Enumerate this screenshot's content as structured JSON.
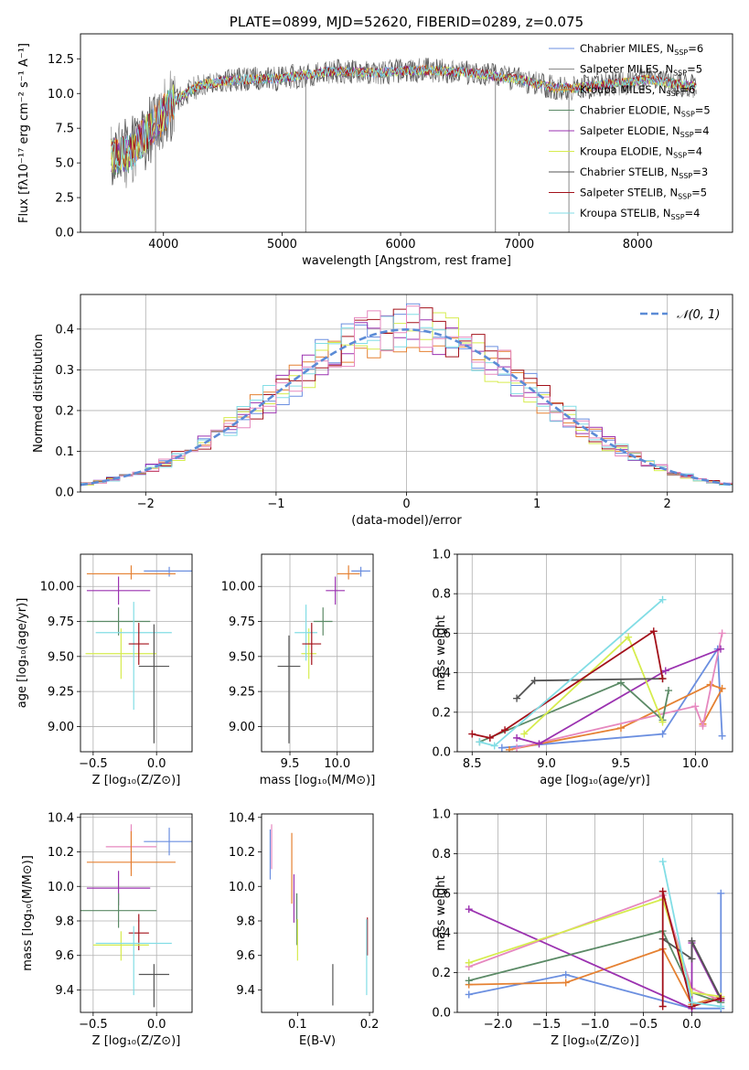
{
  "colors": {
    "chabrier_miles": "#6b8fe0",
    "salpeter_miles": "#8a8a8a",
    "kroupa_miles": "#e58132",
    "chabrier_elodie": "#5b8a66",
    "salpeter_elodie": "#9b32b0",
    "kroupa_elodie": "#d6ec4e",
    "chabrier_stelib": "#555555",
    "salpeter_stelib": "#a3101a",
    "kroupa_stelib": "#82dde5",
    "pink": "#e688bf",
    "normal_curve": "#5b8bd6",
    "grid": "#b0b0b0"
  },
  "chart_data": [
    {
      "id": "spectrum",
      "type": "line",
      "title": "PLATE=0899, MJD=52620, FIBERID=0289, z=0.075",
      "xlabel": "wavelength [Angstrom, rest frame]",
      "ylabel": "Flux [fλ10⁻¹⁷ erg cm⁻² s⁻¹ A⁻¹]",
      "xlim": [
        3300,
        8800
      ],
      "ylim": [
        0,
        14.3
      ],
      "xticks": [
        4000,
        5000,
        6000,
        7000,
        8000
      ],
      "yticks": [
        0.0,
        2.5,
        5.0,
        7.5,
        10.0,
        12.5
      ],
      "grid": false,
      "legend_position": "top-right",
      "legend": [
        {
          "label": "Chabrier MILES, N",
          "sub": "SSP",
          "val": "=6",
          "color": "chabrier_miles"
        },
        {
          "label": "Salpeter MILES, N",
          "sub": "SSP",
          "val": "=5",
          "color": "salpeter_miles"
        },
        {
          "label": "Kroupa MILES, N",
          "sub": "SSP",
          "val": "=6",
          "color": "kroupa_miles"
        },
        {
          "label": "Chabrier ELODIE, N",
          "sub": "SSP",
          "val": "=5",
          "color": "chabrier_elodie"
        },
        {
          "label": "Salpeter ELODIE, N",
          "sub": "SSP",
          "val": "=4",
          "color": "salpeter_elodie"
        },
        {
          "label": "Kroupa ELODIE, N",
          "sub": "SSP",
          "val": "=4",
          "color": "kroupa_elodie"
        },
        {
          "label": "Chabrier STELIB, N",
          "sub": "SSP",
          "val": "=3",
          "color": "chabrier_stelib"
        },
        {
          "label": "Salpeter STELIB, N",
          "sub": "SSP",
          "val": "=5",
          "color": "salpeter_stelib"
        },
        {
          "label": "Kroupa STELIB, N",
          "sub": "SSP",
          "val": "=4",
          "color": "kroupa_stelib"
        }
      ],
      "envelope": {
        "x": [
          3560,
          3700,
          3900,
          4100,
          4300,
          4600,
          5000,
          5400,
          5800,
          6200,
          6600,
          7000,
          7300,
          7500,
          7800,
          8100,
          8400,
          8500
        ],
        "y": [
          5.5,
          5.6,
          7.5,
          9.5,
          10.6,
          11.0,
          11.1,
          11.6,
          11.5,
          11.7,
          11.5,
          11.0,
          10.4,
          10.4,
          10.7,
          11.0,
          10.6,
          10.5
        ]
      },
      "spikes": [
        {
          "x": 3933,
          "y": 0.0
        },
        {
          "x": 5200,
          "y": 0.0
        },
        {
          "x": 6800,
          "y": 0.0
        },
        {
          "x": 7420,
          "y": 0.0
        }
      ]
    },
    {
      "id": "residuals",
      "type": "histogram",
      "xlabel": "(data-model)/error",
      "ylabel": "Normed distribution",
      "xlim": [
        -2.5,
        2.5
      ],
      "ylim": [
        0,
        0.485
      ],
      "xticks": [
        -2,
        -1,
        0,
        1,
        2
      ],
      "yticks": [
        0.0,
        0.1,
        0.2,
        0.3,
        0.4
      ],
      "grid": true,
      "bin_width": 0.1,
      "legend_position": "top-right",
      "legend": [
        {
          "label": "𝒩(0, 1)",
          "color": "normal_curve"
        }
      ],
      "series": [
        {
          "color": "chabrier_miles",
          "seed": 1
        },
        {
          "color": "kroupa_miles",
          "seed": 2
        },
        {
          "color": "salpeter_elodie",
          "seed": 3
        },
        {
          "color": "kroupa_elodie",
          "seed": 4
        },
        {
          "color": "salpeter_stelib",
          "seed": 5
        },
        {
          "color": "kroupa_stelib",
          "seed": 6
        },
        {
          "color": "pink",
          "seed": 7
        }
      ]
    },
    {
      "id": "age_vs_Z",
      "type": "errorbar",
      "xlabel": "Z [log₁₀(Z/Z⊙)]",
      "ylabel": "age  [log₁₀(age/yr)]",
      "xlim": [
        -0.6,
        0.28
      ],
      "ylim": [
        8.82,
        10.23
      ],
      "xticks": [
        -0.5,
        0.0
      ],
      "yticks": [
        9.0,
        9.25,
        9.5,
        9.75,
        10.0
      ],
      "grid": true,
      "points": [
        {
          "color": "chabrier_miles",
          "x": 0.1,
          "xerr": [
            0.2,
            0.2
          ],
          "y": 10.11,
          "yerr": [
            0.04,
            0.03
          ]
        },
        {
          "color": "kroupa_miles",
          "x": -0.2,
          "xerr": [
            0.35,
            0.35
          ],
          "y": 10.09,
          "yerr": [
            0.04,
            0.06
          ]
        },
        {
          "color": "salpeter_elodie",
          "x": -0.3,
          "xerr": [
            0.25,
            0.25
          ],
          "y": 9.97,
          "yerr": [
            0.1,
            0.1
          ]
        },
        {
          "color": "chabrier_elodie",
          "x": -0.3,
          "xerr": [
            0.25,
            0.25
          ],
          "y": 9.75,
          "yerr": [
            0.1,
            0.1
          ]
        },
        {
          "color": "kroupa_elodie",
          "x": -0.28,
          "xerr": [
            0.28,
            0.28
          ],
          "y": 9.52,
          "yerr": [
            0.18,
            0.18
          ]
        },
        {
          "color": "kroupa_stelib",
          "x": -0.18,
          "xerr": [
            0.3,
            0.3
          ],
          "y": 9.67,
          "yerr": [
            0.55,
            0.22
          ]
        },
        {
          "color": "salpeter_stelib",
          "x": -0.14,
          "xerr": [
            0.08,
            0.08
          ],
          "y": 9.59,
          "yerr": [
            0.15,
            0.15
          ]
        },
        {
          "color": "chabrier_stelib",
          "x": -0.02,
          "xerr": [
            0.12,
            0.12
          ],
          "y": 9.43,
          "yerr": [
            0.55,
            0.3
          ]
        }
      ]
    },
    {
      "id": "age_vs_mass",
      "type": "errorbar",
      "xlabel": "mass [log₁₀(M/M⊙)]",
      "ylabel": "",
      "xlim": [
        9.2,
        10.38
      ],
      "ylim": [
        8.82,
        10.23
      ],
      "xticks": [
        9.5,
        10.0
      ],
      "yticks": [
        9.0,
        9.25,
        9.5,
        9.75,
        10.0
      ],
      "grid": true,
      "points": [
        {
          "color": "chabrier_miles",
          "x": 10.25,
          "xerr": [
            0.1,
            0.1
          ],
          "y": 10.11,
          "yerr": [
            0.04,
            0.03
          ]
        },
        {
          "color": "kroupa_miles",
          "x": 10.12,
          "xerr": [
            0.12,
            0.12
          ],
          "y": 10.09,
          "yerr": [
            0.04,
            0.06
          ]
        },
        {
          "color": "salpeter_elodie",
          "x": 9.98,
          "xerr": [
            0.1,
            0.1
          ],
          "y": 9.97,
          "yerr": [
            0.1,
            0.1
          ]
        },
        {
          "color": "chabrier_elodie",
          "x": 9.85,
          "xerr": [
            0.1,
            0.1
          ],
          "y": 9.75,
          "yerr": [
            0.1,
            0.1
          ]
        },
        {
          "color": "kroupa_elodie",
          "x": 9.7,
          "xerr": [
            0.08,
            0.08
          ],
          "y": 9.52,
          "yerr": [
            0.18,
            0.18
          ]
        },
        {
          "color": "kroupa_stelib",
          "x": 9.67,
          "xerr": [
            0.12,
            0.12
          ],
          "y": 9.67,
          "yerr": [
            0.2,
            0.2
          ]
        },
        {
          "color": "salpeter_stelib",
          "x": 9.73,
          "xerr": [
            0.1,
            0.1
          ],
          "y": 9.59,
          "yerr": [
            0.15,
            0.15
          ]
        },
        {
          "color": "chabrier_stelib",
          "x": 9.49,
          "xerr": [
            0.12,
            0.12
          ],
          "y": 9.43,
          "yerr": [
            0.55,
            0.22
          ]
        }
      ]
    },
    {
      "id": "weight_vs_age",
      "type": "line",
      "xlabel": "age  [log₁₀(age/yr)]",
      "ylabel": "mass weight",
      "xlim": [
        8.4,
        10.25
      ],
      "ylim": [
        0.0,
        1.0
      ],
      "xticks": [
        8.5,
        9.0,
        9.5,
        10.0
      ],
      "yticks": [
        0.0,
        0.2,
        0.4,
        0.6,
        0.8,
        1.0
      ],
      "grid": true,
      "series": [
        {
          "color": "chabrier_miles",
          "x": [
            8.7,
            9.78,
            10.15,
            10.18
          ],
          "y": [
            0.02,
            0.09,
            0.52,
            0.08
          ]
        },
        {
          "color": "kroupa_miles",
          "x": [
            8.75,
            9.5,
            10.1,
            10.18,
            10.05
          ],
          "y": [
            0.01,
            0.12,
            0.34,
            0.32,
            0.14
          ]
        },
        {
          "color": "pink",
          "x": [
            8.8,
            10.0,
            10.05,
            10.18
          ],
          "y": [
            0.02,
            0.23,
            0.13,
            0.6
          ]
        },
        {
          "color": "salpeter_elodie",
          "x": [
            8.8,
            8.95,
            9.8,
            10.17
          ],
          "y": [
            0.07,
            0.04,
            0.41,
            0.52
          ]
        },
        {
          "color": "chabrier_elodie",
          "x": [
            8.55,
            9.5,
            9.78,
            9.82
          ],
          "y": [
            0.05,
            0.35,
            0.16,
            0.31
          ]
        },
        {
          "color": "kroupa_elodie",
          "x": [
            8.85,
            9.55,
            9.78
          ],
          "y": [
            0.09,
            0.58,
            0.15
          ]
        },
        {
          "color": "chabrier_stelib",
          "x": [
            8.8,
            8.92,
            9.78
          ],
          "y": [
            0.27,
            0.36,
            0.37
          ]
        },
        {
          "color": "salpeter_stelib",
          "x": [
            8.5,
            8.62,
            8.72,
            9.72,
            9.78
          ],
          "y": [
            0.09,
            0.07,
            0.11,
            0.61,
            0.37
          ]
        },
        {
          "color": "kroupa_stelib",
          "x": [
            8.55,
            8.65,
            9.78
          ],
          "y": [
            0.05,
            0.03,
            0.77
          ]
        }
      ]
    },
    {
      "id": "mass_vs_Z",
      "type": "errorbar",
      "xlabel": "Z [log₁₀(Z/Z⊙)]",
      "ylabel": "mass [log₁₀(M/M⊙)]",
      "xlim": [
        -0.6,
        0.28
      ],
      "ylim": [
        9.27,
        10.42
      ],
      "xticks": [
        -0.5,
        0.0
      ],
      "yticks": [
        9.4,
        9.6,
        9.8,
        10.0,
        10.2,
        10.4
      ],
      "grid": true,
      "points": [
        {
          "color": "chabrier_miles",
          "x": 0.1,
          "xerr": [
            0.2,
            0.2
          ],
          "y": 10.26,
          "yerr": [
            0.08,
            0.08
          ]
        },
        {
          "color": "pink",
          "x": -0.2,
          "xerr": [
            0.2,
            0.2
          ],
          "y": 10.23,
          "yerr": [
            0.13,
            0.13
          ]
        },
        {
          "color": "kroupa_miles",
          "x": -0.2,
          "xerr": [
            0.35,
            0.35
          ],
          "y": 10.14,
          "yerr": [
            0.08,
            0.18
          ]
        },
        {
          "color": "salpeter_elodie",
          "x": -0.3,
          "xerr": [
            0.25,
            0.25
          ],
          "y": 9.99,
          "yerr": [
            0.1,
            0.1
          ]
        },
        {
          "color": "chabrier_elodie",
          "x": -0.3,
          "xerr": [
            0.3,
            0.3
          ],
          "y": 9.86,
          "yerr": [
            0.1,
            0.1
          ]
        },
        {
          "color": "salpeter_stelib",
          "x": -0.14,
          "xerr": [
            0.08,
            0.08
          ],
          "y": 9.73,
          "yerr": [
            0.1,
            0.11
          ]
        },
        {
          "color": "kroupa_elodie",
          "x": -0.28,
          "xerr": [
            0.22,
            0.22
          ],
          "y": 9.66,
          "yerr": [
            0.09,
            0.08
          ]
        },
        {
          "color": "kroupa_stelib",
          "x": -0.18,
          "xerr": [
            0.3,
            0.3
          ],
          "y": 9.67,
          "yerr": [
            0.3,
            0.1
          ]
        },
        {
          "color": "chabrier_stelib",
          "x": -0.02,
          "xerr": [
            0.12,
            0.12
          ],
          "y": 9.49,
          "yerr": [
            0.19,
            0.06
          ]
        }
      ]
    },
    {
      "id": "mass_vs_ebv",
      "type": "errorbar",
      "xlabel": "E(B-V)",
      "ylabel": "",
      "xlim": [
        0.05,
        0.205
      ],
      "ylim": [
        9.27,
        10.42
      ],
      "xticks": [
        0.1,
        0.2
      ],
      "yticks": [
        9.4,
        9.6,
        9.8,
        10.0,
        10.2,
        10.4
      ],
      "grid": false,
      "points": [
        {
          "color": "chabrier_miles",
          "x": 0.062,
          "xerr": [
            0,
            0
          ],
          "y": 10.2,
          "yerr": [
            0.16,
            0.13
          ]
        },
        {
          "color": "pink",
          "x": 0.064,
          "xerr": [
            0,
            0
          ],
          "y": 10.22,
          "yerr": [
            0.12,
            0.14
          ]
        },
        {
          "color": "kroupa_miles",
          "x": 0.092,
          "xerr": [
            0,
            0
          ],
          "y": 10.1,
          "yerr": [
            0.2,
            0.21
          ]
        },
        {
          "color": "salpeter_elodie",
          "x": 0.095,
          "xerr": [
            0,
            0
          ],
          "y": 9.97,
          "yerr": [
            0.18,
            0.1
          ]
        },
        {
          "color": "chabrier_elodie",
          "x": 0.099,
          "xerr": [
            0,
            0
          ],
          "y": 9.86,
          "yerr": [
            0.2,
            0.1
          ]
        },
        {
          "color": "kroupa_elodie",
          "x": 0.1,
          "xerr": [
            0,
            0
          ],
          "y": 9.67,
          "yerr": [
            0.1,
            0.14
          ]
        },
        {
          "color": "chabrier_stelib",
          "x": 0.149,
          "xerr": [
            0,
            0
          ],
          "y": 9.43,
          "yerr": [
            0.12,
            0.12
          ]
        },
        {
          "color": "salpeter_stelib",
          "x": 0.197,
          "xerr": [
            0,
            0
          ],
          "y": 9.72,
          "yerr": [
            0.12,
            0.1
          ]
        },
        {
          "color": "kroupa_stelib",
          "x": 0.196,
          "xerr": [
            0,
            0
          ],
          "y": 9.58,
          "yerr": [
            0.21,
            0.23
          ]
        }
      ]
    },
    {
      "id": "weight_vs_Z",
      "type": "line",
      "xlabel": "Z [log₁₀(Z/Z⊙)]",
      "ylabel": "mass weight",
      "xlim": [
        -2.42,
        0.42
      ],
      "ylim": [
        0.0,
        1.0
      ],
      "xticks": [
        -2.0,
        -1.5,
        -1.0,
        -0.5,
        0.0
      ],
      "yticks": [
        0.0,
        0.2,
        0.4,
        0.6,
        0.8,
        1.0
      ],
      "grid": true,
      "series": [
        {
          "color": "chabrier_miles",
          "x": [
            -2.3,
            -1.3,
            0.0,
            0.3,
            0.3
          ],
          "y": [
            0.09,
            0.19,
            0.02,
            0.02,
            0.6
          ]
        },
        {
          "color": "kroupa_miles",
          "x": [
            -2.3,
            -1.3,
            -0.3,
            0.0,
            0.3
          ],
          "y": [
            0.14,
            0.15,
            0.32,
            0.04,
            0.08
          ]
        },
        {
          "color": "pink",
          "x": [
            -2.3,
            -0.3,
            0.0,
            0.3
          ],
          "y": [
            0.23,
            0.59,
            0.12,
            0.06
          ]
        },
        {
          "color": "salpeter_elodie",
          "x": [
            -2.3,
            0.0,
            0.0,
            0.3
          ],
          "y": [
            0.52,
            0.02,
            0.35,
            0.06
          ]
        },
        {
          "color": "chabrier_elodie",
          "x": [
            -2.3,
            -0.3,
            0.0,
            0.3
          ],
          "y": [
            0.16,
            0.41,
            0.1,
            0.05
          ]
        },
        {
          "color": "kroupa_elodie",
          "x": [
            -2.3,
            -0.3,
            0.0,
            0.3
          ],
          "y": [
            0.25,
            0.57,
            0.1,
            0.08
          ]
        },
        {
          "color": "chabrier_stelib",
          "x": [
            -0.3,
            0.0,
            0.0,
            0.3
          ],
          "y": [
            0.37,
            0.27,
            0.36,
            0.07
          ]
        },
        {
          "color": "salpeter_stelib",
          "x": [
            -0.3,
            -0.3,
            0.0,
            0.3
          ],
          "y": [
            0.03,
            0.61,
            0.03,
            0.07
          ]
        },
        {
          "color": "kroupa_stelib",
          "x": [
            -0.3,
            0.0,
            0.3
          ],
          "y": [
            0.76,
            0.05,
            0.03
          ]
        }
      ]
    }
  ]
}
